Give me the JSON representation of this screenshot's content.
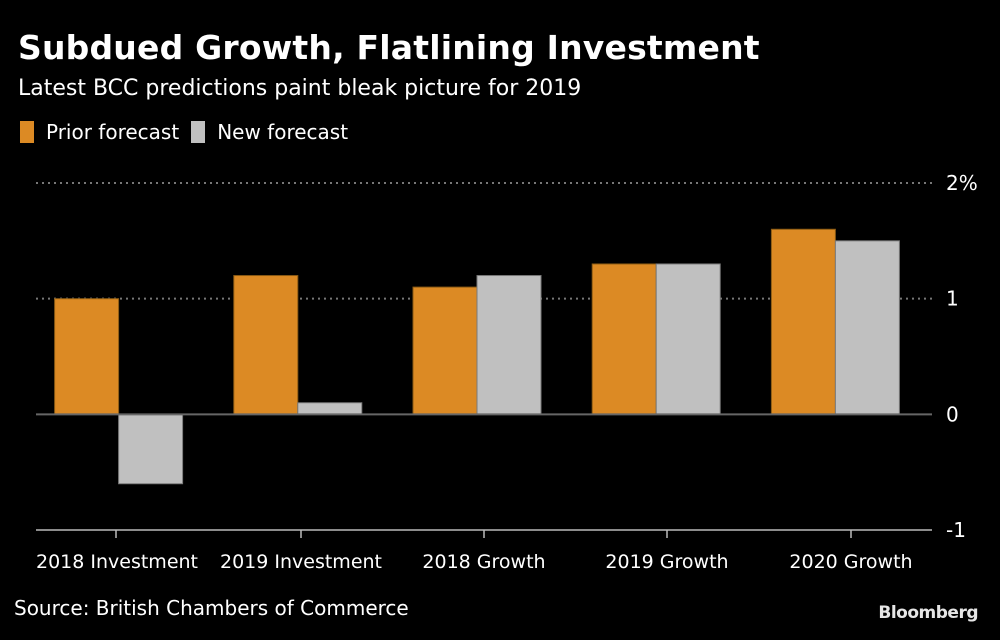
{
  "header": {
    "title": "Subdued Growth, Flatlining Investment",
    "subtitle": "Latest BCC predictions paint bleak picture for 2019"
  },
  "footer": {
    "source": "Source: British Chambers of Commerce",
    "brand": "Bloomberg"
  },
  "colors": {
    "background": "#000000",
    "prior": "#dc8a24",
    "new": "#c0c0c0",
    "grid": "#777777",
    "axis": "#666666"
  },
  "chart_data": {
    "type": "bar",
    "title": "Subdued Growth, Flatlining Investment",
    "subtitle": "Latest BCC predictions paint bleak picture for 2019",
    "xlabel": "",
    "ylabel": "",
    "categories": [
      "2018 Investment",
      "2019 Investment",
      "2018 Growth",
      "2019 Growth",
      "2020 Growth"
    ],
    "series": [
      {
        "name": "Prior forecast",
        "color": "#dc8a24",
        "values": [
          1.0,
          1.2,
          1.1,
          1.3,
          1.6
        ]
      },
      {
        "name": "New forecast",
        "color": "#c0c0c0",
        "values": [
          -0.6,
          0.1,
          1.2,
          1.3,
          1.5
        ]
      }
    ],
    "ylim": [
      -1,
      2
    ],
    "yticks": [
      {
        "value": 2,
        "label": "2%"
      },
      {
        "value": 1,
        "label": "1"
      },
      {
        "value": 0,
        "label": "0"
      },
      {
        "value": -1,
        "label": "-1"
      }
    ],
    "grid": true,
    "y_axis_side": "right",
    "legend_position": "top-left",
    "source": "Source: British Chambers of Commerce"
  }
}
